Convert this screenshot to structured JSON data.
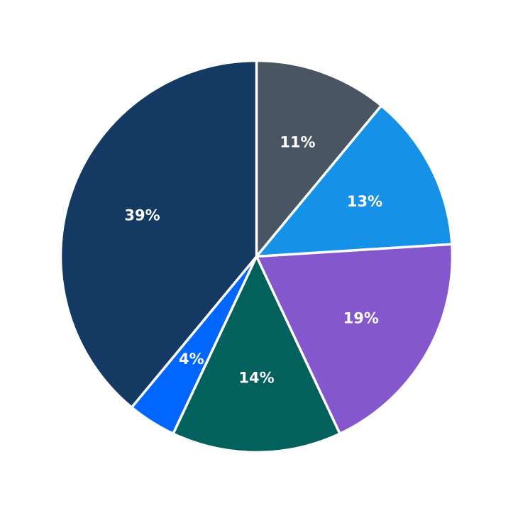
{
  "chart_data": {
    "type": "pie",
    "start": "12 o'clock",
    "direction": "clockwise",
    "slices": [
      {
        "label": "11%",
        "value": 11,
        "color": "#4a5563"
      },
      {
        "label": "13%",
        "value": 13,
        "color": "#1591e8"
      },
      {
        "label": "19%",
        "value": 19,
        "color": "#8457cc"
      },
      {
        "label": "14%",
        "value": 14,
        "color": "#02605d"
      },
      {
        "label": "4%",
        "value": 4,
        "color": "#0166ff"
      },
      {
        "label": "39%",
        "value": 39,
        "color": "#143962"
      }
    ]
  }
}
